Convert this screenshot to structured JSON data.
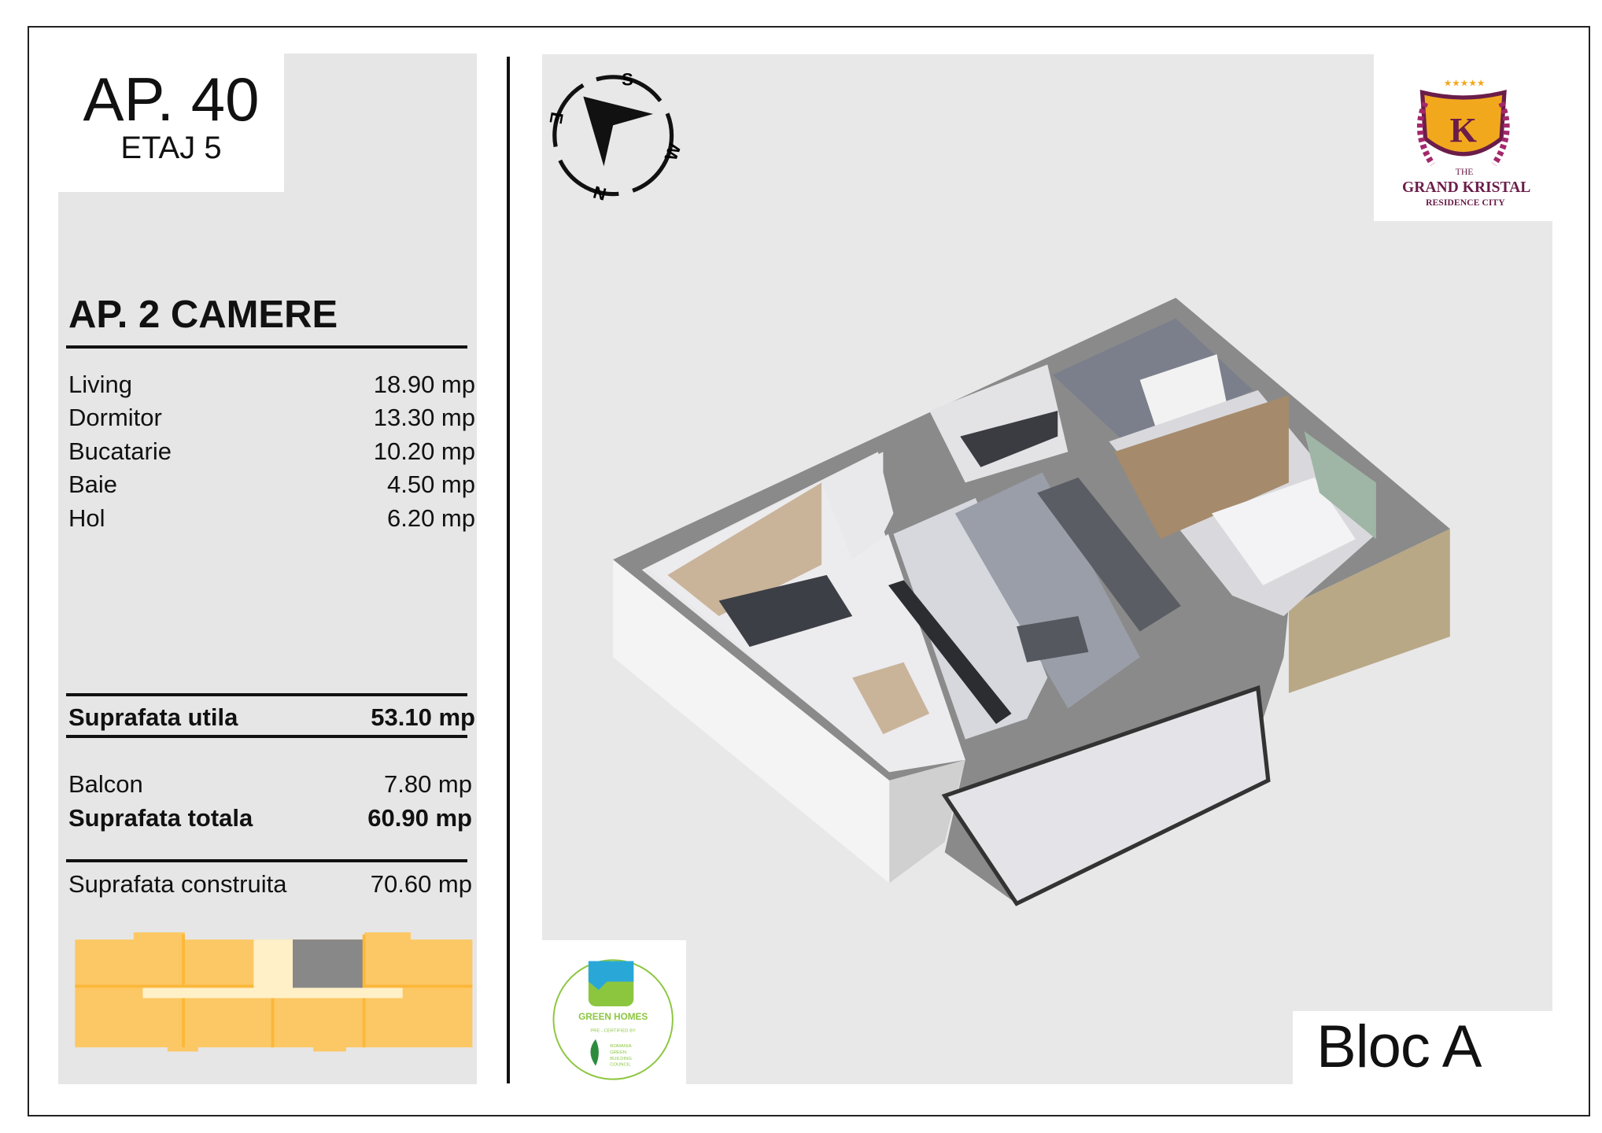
{
  "header": {
    "apartment": "AP. 40",
    "floor": "ETAJ 5"
  },
  "summary": {
    "title": "AP. 2 CAMERE",
    "rooms": [
      {
        "label": "Living",
        "value": "18.90 mp"
      },
      {
        "label": "Dormitor",
        "value": "13.30 mp"
      },
      {
        "label": "Bucatarie",
        "value": "10.20 mp"
      },
      {
        "label": "Baie",
        "value": "4.50 mp"
      },
      {
        "label": "Hol",
        "value": "6.20 mp"
      }
    ],
    "usable": {
      "label": "Suprafata utila",
      "value": "53.10 mp"
    },
    "balcony": {
      "label": "Balcon",
      "value": "7.80 mp"
    },
    "total": {
      "label": "Suprafata totala",
      "value": "60.90 mp"
    },
    "built": {
      "label": "Suprafata construita",
      "value": "70.60 mp"
    }
  },
  "compass": {
    "s": "S",
    "w": "W",
    "n": "N",
    "e": "E"
  },
  "brand": {
    "line1": "THE",
    "line2": "GRAND KRISTAL",
    "line3": "RESIDENCE CITY"
  },
  "certification": {
    "title": "GREEN HOMES",
    "subtitle": "PRE - CERTIFIED BY",
    "org": [
      "ROMANIA",
      "GREEN",
      "BUILDING",
      "COUNCIL"
    ]
  },
  "block": {
    "label": "Bloc A"
  },
  "colors": {
    "building": "#fcc865",
    "building_line": "#fbb83a",
    "highlight_unit": "#888888",
    "corridor": "#fff0c8",
    "brand": "#6b1d4a",
    "brand_gold": "#f2a81d",
    "green": "#8cc63f"
  }
}
